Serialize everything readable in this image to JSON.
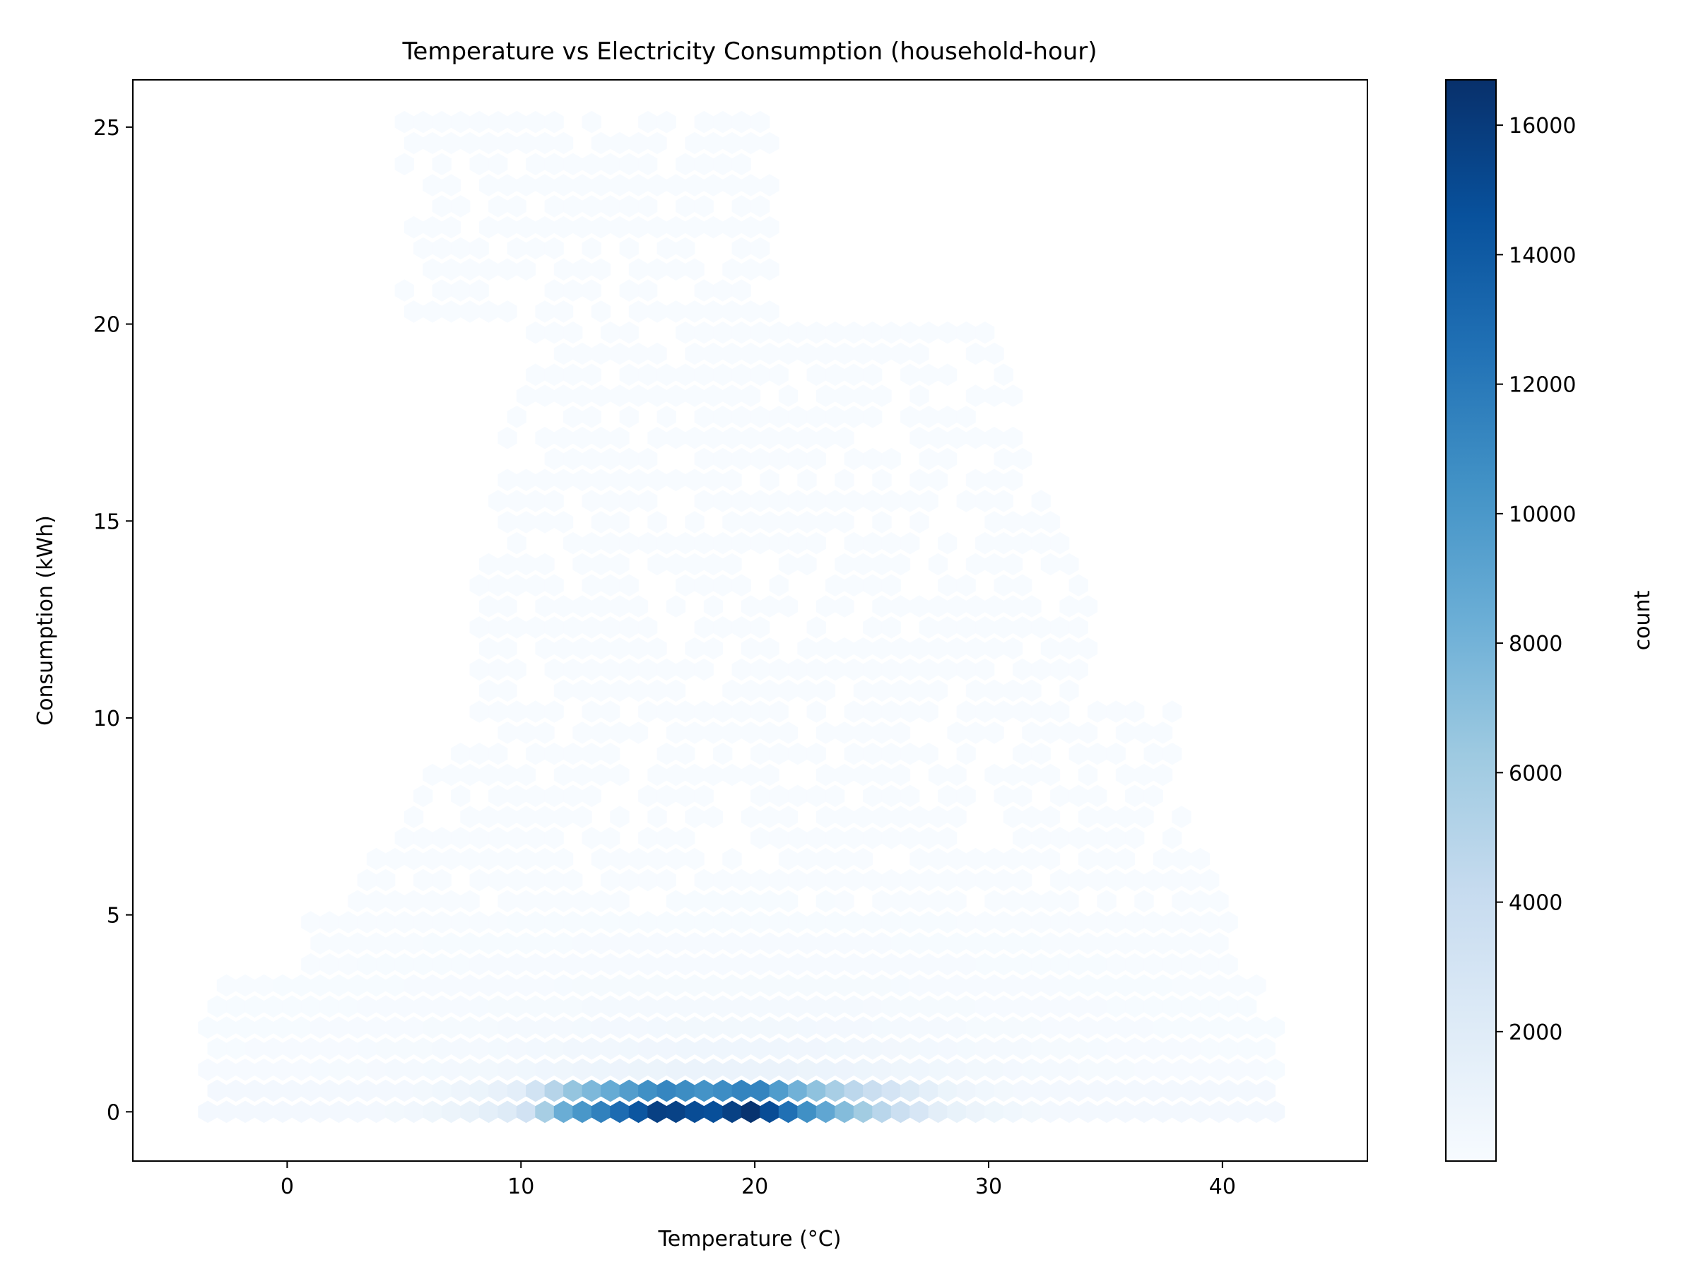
{
  "chart_data": {
    "type": "heatmap",
    "subtype": "hexbin",
    "title": "Temperature vs Electricity Consumption (household-hour)",
    "xlabel": "Temperature (°C)",
    "ylabel": "Consumption (kWh)",
    "xlim": [
      -6.6,
      46.2
    ],
    "ylim": [
      -1.25,
      26.2
    ],
    "xticks": [
      0,
      10,
      20,
      30,
      40
    ],
    "yticks": [
      0,
      5,
      10,
      15,
      20,
      25
    ],
    "colormap": "Blues",
    "colorbar": {
      "label": "count",
      "range": [
        1,
        16700
      ],
      "ticks": [
        2000,
        4000,
        6000,
        8000,
        10000,
        12000,
        14000,
        16000
      ]
    },
    "grid": false,
    "density_profile": {
      "description": "peak counts along y=0 row by temperature",
      "peak_row": [
        {
          "x": 10,
          "count": 2500
        },
        {
          "x": 12,
          "count": 9000
        },
        {
          "x": 14,
          "count": 12500
        },
        {
          "x": 16,
          "count": 16000
        },
        {
          "x": 18,
          "count": 14500
        },
        {
          "x": 20,
          "count": 16700
        },
        {
          "x": 22,
          "count": 11000
        },
        {
          "x": 24,
          "count": 7000
        },
        {
          "x": 26,
          "count": 4000
        },
        {
          "x": 28,
          "count": 1500
        }
      ]
    }
  }
}
